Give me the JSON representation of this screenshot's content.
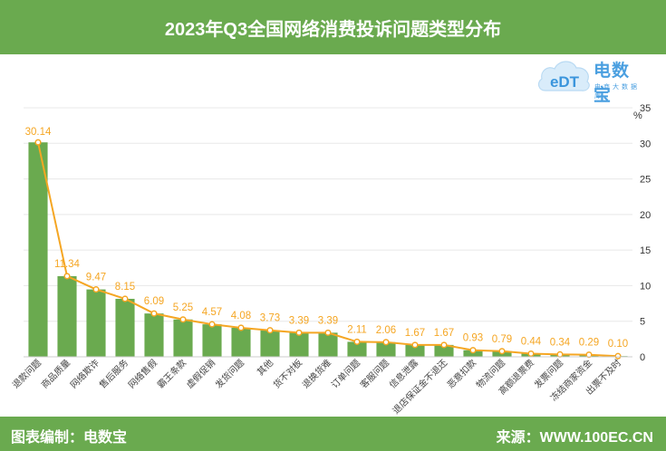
{
  "header": {
    "title": "2023年Q3全国网络消费投诉问题类型分布"
  },
  "logo": {
    "icon_name": "cloud-edt-logo-icon",
    "icon_text": "eDT",
    "brand": "电数宝",
    "sub": "电商大数据库"
  },
  "footer": {
    "left": "图表编制：电数宝",
    "right": "来源：WWW.100EC.CN"
  },
  "colors": {
    "header_bg": "#6aaa4f",
    "bar": "#6aaa4f",
    "line": "#f5a623",
    "label": "#f5a623",
    "grid": "#e8e8e8"
  },
  "chart_data": {
    "type": "bar",
    "unit": "%",
    "categories": [
      "退款问题",
      "商品质量",
      "网络欺诈",
      "售后服务",
      "网络售假",
      "霸王条款",
      "虚假促销",
      "发货问题",
      "其他",
      "货不对板",
      "退换货难",
      "订单问题",
      "客服问题",
      "信息泄露",
      "退店保证金不退还",
      "恶意扣款",
      "物流问题",
      "高额退票费",
      "发票问题",
      "冻结商家资金",
      "出票不及时"
    ],
    "values": [
      30.14,
      11.34,
      9.47,
      8.15,
      6.09,
      5.25,
      4.57,
      4.08,
      3.73,
      3.39,
      3.39,
      2.11,
      2.06,
      1.67,
      1.67,
      0.93,
      0.79,
      0.44,
      0.34,
      0.29,
      0.1
    ],
    "value_labels": [
      "30.14",
      "11.34",
      "9.47",
      "8.15",
      "6.09",
      "5.25",
      "4.57",
      "4.08",
      "3.73",
      "3.39",
      "3.39",
      "2.11",
      "2.06",
      "1.67",
      "1.67",
      "0.93",
      "0.79",
      "0.44",
      "0.34",
      "0.29",
      "0.10"
    ],
    "ylim": [
      0,
      35
    ],
    "yticks": [
      "0",
      "5",
      "10",
      "15",
      "20",
      "25",
      "30",
      "35"
    ],
    "y_axis_side": "right",
    "grid": true,
    "overlay_line": true
  }
}
